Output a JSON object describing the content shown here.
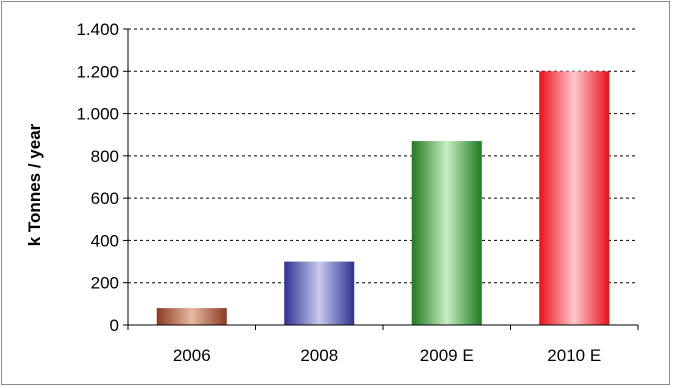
{
  "chart_data": {
    "type": "bar",
    "categories": [
      "2006",
      "2008",
      "2009 E",
      "2010 E"
    ],
    "values": [
      80,
      300,
      870,
      1200
    ],
    "title": "",
    "xlabel": "",
    "ylabel": "k Tonnes / year",
    "ylim": [
      0,
      1400
    ],
    "yticks": [
      0,
      200,
      400,
      600,
      800,
      1000,
      1200,
      1400
    ],
    "ytick_labels": [
      "0",
      "200",
      "400",
      "600",
      "800",
      "1.000",
      "1.200",
      "1.400"
    ],
    "grid": "horizontal dashed",
    "legend": "none",
    "bar_colors": [
      {
        "dark": "#8b3a22",
        "light": "#e8b9a2"
      },
      {
        "dark": "#2e3191",
        "light": "#c9cbee"
      },
      {
        "dark": "#1f7a1f",
        "light": "#c8edc4"
      },
      {
        "dark": "#e8101a",
        "light": "#ffc8cb"
      }
    ]
  }
}
